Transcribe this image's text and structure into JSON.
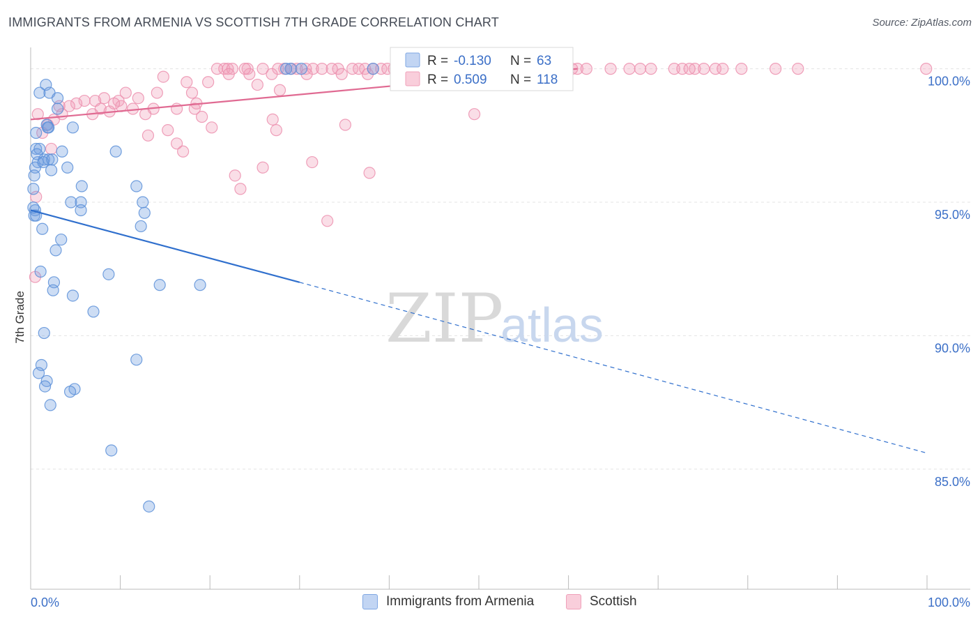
{
  "header": {
    "title": "IMMIGRANTS FROM ARMENIA VS SCOTTISH 7TH GRADE CORRELATION CHART",
    "source": "Source: ZipAtlas.com"
  },
  "watermark": {
    "zip": "ZIP",
    "atlas": "atlas"
  },
  "legend": {
    "r_label": "R =",
    "n_label": "N =",
    "armenia": {
      "r": "-0.130",
      "n": "63"
    },
    "scottish": {
      "r": "0.509",
      "n": "118"
    }
  },
  "bottom_legend": {
    "armenia_label": "Immigrants from Armenia",
    "scottish_label": "Scottish"
  },
  "chart_data": {
    "type": "scatter",
    "title": "IMMIGRANTS FROM ARMENIA VS SCOTTISH 7TH GRADE CORRELATION CHART",
    "ylabel": "7th Grade",
    "xlabel": "",
    "xlim": [
      0,
      100
    ],
    "ylim": [
      80.5,
      100.8
    ],
    "x_tick_labels": [
      "0.0%",
      "100.0%"
    ],
    "y_ticks": [
      {
        "value": 100,
        "label": "100.0%"
      },
      {
        "value": 95,
        "label": "95.0%"
      },
      {
        "value": 90,
        "label": "90.0%"
      },
      {
        "value": 85,
        "label": "85.0%"
      }
    ],
    "grid": true,
    "legend_placement": "top-center",
    "colors": {
      "armenia": "#6f9fe0",
      "armenia_line": "#2f6fcd",
      "scottish": "#f2a0bb",
      "scottish_line": "#e06a92"
    },
    "series": [
      {
        "name": "Immigrants from Armenia",
        "r": -0.13,
        "n": 63,
        "trend": {
          "x0": 0,
          "y0": 94.7,
          "x1": 30,
          "y1": 92.0,
          "dash_x1": 100,
          "dash_y1": 85.6
        },
        "points": [
          [
            1.7,
            99.4
          ],
          [
            1.0,
            99.1
          ],
          [
            2.1,
            99.1
          ],
          [
            3.0,
            98.9
          ],
          [
            3.0,
            98.5
          ],
          [
            1.8,
            97.9
          ],
          [
            2.0,
            97.8
          ],
          [
            4.7,
            97.8
          ],
          [
            0.6,
            97.6
          ],
          [
            0.6,
            97.0
          ],
          [
            1.0,
            97.0
          ],
          [
            3.5,
            96.9
          ],
          [
            9.5,
            96.9
          ],
          [
            0.8,
            96.5
          ],
          [
            1.5,
            96.6
          ],
          [
            2.0,
            96.6
          ],
          [
            0.5,
            96.3
          ],
          [
            2.3,
            96.2
          ],
          [
            4.1,
            96.3
          ],
          [
            0.4,
            96.0
          ],
          [
            5.7,
            95.6
          ],
          [
            11.8,
            95.6
          ],
          [
            0.3,
            95.5
          ],
          [
            4.5,
            95.0
          ],
          [
            5.6,
            95.0
          ],
          [
            12.5,
            95.0
          ],
          [
            0.5,
            94.7
          ],
          [
            5.6,
            94.7
          ],
          [
            12.7,
            94.6
          ],
          [
            0.4,
            94.5
          ],
          [
            0.6,
            94.5
          ],
          [
            1.3,
            94.0
          ],
          [
            12.3,
            94.1
          ],
          [
            3.4,
            93.6
          ],
          [
            2.8,
            93.2
          ],
          [
            1.1,
            92.4
          ],
          [
            8.7,
            92.3
          ],
          [
            2.6,
            92.0
          ],
          [
            14.4,
            91.9
          ],
          [
            18.9,
            91.9
          ],
          [
            2.5,
            91.7
          ],
          [
            4.7,
            91.5
          ],
          [
            7.0,
            90.9
          ],
          [
            1.5,
            90.1
          ],
          [
            11.8,
            89.1
          ],
          [
            1.2,
            88.9
          ],
          [
            0.9,
            88.6
          ],
          [
            1.8,
            88.3
          ],
          [
            1.6,
            88.1
          ],
          [
            4.9,
            88.0
          ],
          [
            4.4,
            87.9
          ],
          [
            2.2,
            87.4
          ],
          [
            9.0,
            85.7
          ],
          [
            13.2,
            83.6
          ],
          [
            29.0,
            100.0
          ],
          [
            30.2,
            100.0
          ],
          [
            38.2,
            100.0
          ],
          [
            28.5,
            100.0
          ],
          [
            0.3,
            94.8
          ],
          [
            1.4,
            96.5
          ],
          [
            0.7,
            96.8
          ],
          [
            2.4,
            96.6
          ],
          [
            1.9,
            97.8
          ]
        ]
      },
      {
        "name": "Scottish",
        "r": 0.509,
        "n": 118,
        "trend": {
          "x0": 0,
          "y0": 98.1,
          "x1": 61,
          "y1": 100.0
        },
        "points": [
          [
            20.8,
            100.0
          ],
          [
            21.6,
            100.0
          ],
          [
            22.0,
            100.0
          ],
          [
            22.5,
            100.0
          ],
          [
            24.2,
            100.0
          ],
          [
            25.9,
            100.0
          ],
          [
            27.6,
            100.0
          ],
          [
            28.3,
            100.0
          ],
          [
            29.1,
            100.0
          ],
          [
            29.7,
            100.0
          ],
          [
            30.7,
            100.0
          ],
          [
            31.5,
            100.0
          ],
          [
            32.5,
            100.0
          ],
          [
            34.3,
            100.0
          ],
          [
            35.9,
            100.0
          ],
          [
            36.6,
            100.0
          ],
          [
            37.3,
            100.0
          ],
          [
            38.2,
            100.0
          ],
          [
            39.1,
            100.0
          ],
          [
            39.8,
            100.0
          ],
          [
            40.5,
            100.0
          ],
          [
            41.5,
            100.0
          ],
          [
            42.1,
            100.0
          ],
          [
            44.9,
            100.0
          ],
          [
            46.3,
            100.0
          ],
          [
            46.9,
            100.0
          ],
          [
            48.0,
            100.0
          ],
          [
            48.9,
            100.0
          ],
          [
            49.7,
            100.0
          ],
          [
            51.6,
            100.0
          ],
          [
            52.8,
            100.0
          ],
          [
            54.0,
            100.0
          ],
          [
            54.7,
            100.0
          ],
          [
            55.7,
            100.0
          ],
          [
            56.5,
            100.0
          ],
          [
            57.9,
            100.0
          ],
          [
            58.9,
            100.0
          ],
          [
            59.8,
            100.0
          ],
          [
            61.0,
            100.0
          ],
          [
            62.0,
            100.0
          ],
          [
            64.7,
            100.0
          ],
          [
            66.8,
            100.0
          ],
          [
            69.2,
            100.0
          ],
          [
            71.8,
            100.0
          ],
          [
            72.7,
            100.0
          ],
          [
            74.1,
            100.0
          ],
          [
            75.1,
            100.0
          ],
          [
            76.4,
            100.0
          ],
          [
            77.2,
            100.0
          ],
          [
            79.3,
            100.0
          ],
          [
            83.1,
            100.0
          ],
          [
            85.6,
            100.0
          ],
          [
            99.9,
            100.0
          ],
          [
            22.1,
            99.8
          ],
          [
            24.4,
            99.8
          ],
          [
            26.9,
            99.8
          ],
          [
            30.8,
            99.8
          ],
          [
            34.7,
            99.8
          ],
          [
            37.6,
            99.8
          ],
          [
            14.8,
            99.7
          ],
          [
            17.4,
            99.5
          ],
          [
            19.8,
            99.5
          ],
          [
            25.3,
            99.4
          ],
          [
            10.6,
            99.1
          ],
          [
            14.1,
            99.1
          ],
          [
            18.0,
            99.1
          ],
          [
            27.8,
            99.2
          ],
          [
            12.0,
            98.9
          ],
          [
            8.2,
            98.9
          ],
          [
            6.0,
            98.8
          ],
          [
            7.2,
            98.8
          ],
          [
            9.8,
            98.8
          ],
          [
            18.5,
            98.7
          ],
          [
            5.1,
            98.7
          ],
          [
            4.3,
            98.6
          ],
          [
            3.2,
            98.6
          ],
          [
            10.1,
            98.6
          ],
          [
            13.7,
            98.5
          ],
          [
            16.3,
            98.5
          ],
          [
            11.4,
            98.5
          ],
          [
            7.8,
            98.5
          ],
          [
            8.8,
            98.4
          ],
          [
            3.5,
            98.3
          ],
          [
            12.8,
            98.3
          ],
          [
            19.1,
            98.2
          ],
          [
            6.9,
            98.3
          ],
          [
            49.5,
            98.3
          ],
          [
            2.6,
            98.1
          ],
          [
            27.0,
            98.1
          ],
          [
            1.9,
            97.9
          ],
          [
            35.1,
            97.9
          ],
          [
            15.3,
            97.7
          ],
          [
            20.2,
            97.8
          ],
          [
            27.4,
            97.7
          ],
          [
            13.1,
            97.5
          ],
          [
            16.3,
            97.2
          ],
          [
            17.0,
            96.9
          ],
          [
            31.4,
            96.5
          ],
          [
            25.9,
            96.3
          ],
          [
            37.8,
            96.1
          ],
          [
            22.8,
            96.0
          ],
          [
            23.4,
            95.5
          ],
          [
            33.1,
            94.3
          ],
          [
            0.6,
            95.2
          ],
          [
            0.5,
            92.2
          ],
          [
            1.3,
            97.6
          ],
          [
            0.8,
            98.3
          ],
          [
            2.3,
            97.0
          ],
          [
            18.3,
            98.5
          ],
          [
            9.3,
            98.7
          ],
          [
            23.9,
            100.0
          ],
          [
            33.6,
            100.0
          ],
          [
            43.2,
            100.0
          ],
          [
            50.6,
            100.0
          ],
          [
            53.3,
            100.0
          ],
          [
            60.4,
            100.0
          ],
          [
            68.0,
            100.0
          ],
          [
            73.5,
            100.0
          ]
        ]
      }
    ]
  }
}
